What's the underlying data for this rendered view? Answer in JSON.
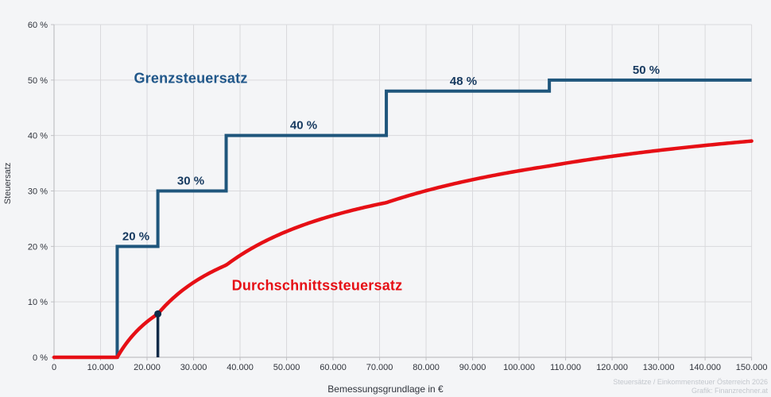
{
  "page": {
    "background": "#f4f5f7"
  },
  "chart_data": {
    "type": "line",
    "title": "",
    "xlabel": "Bemessungsgrundlage in €",
    "ylabel": "Steuersatz",
    "xlim": [
      0,
      150000
    ],
    "ylim": [
      0,
      60
    ],
    "grid": true,
    "x_tick_values": [
      0,
      10000,
      20000,
      30000,
      40000,
      50000,
      60000,
      70000,
      80000,
      90000,
      100000,
      110000,
      120000,
      130000,
      140000,
      150000
    ],
    "x_tick_labels": [
      "0",
      "10.000",
      "20.000",
      "30.000",
      "40.000",
      "50.000",
      "60.000",
      "70.000",
      "80.000",
      "90.000",
      "100.000",
      "110.000",
      "120.000",
      "130.000",
      "140.000",
      "150.000"
    ],
    "y_tick_values": [
      0,
      10,
      20,
      30,
      40,
      50,
      60
    ],
    "y_tick_labels": [
      "0 %",
      "10 %",
      "20 %",
      "30 %",
      "40 %",
      "50 %",
      "60 %"
    ],
    "series": [
      {
        "name": "Grenzsteuersatz",
        "type": "step",
        "color": "#1f567c",
        "label_color": "#20578a",
        "brackets": [
          {
            "from": 0,
            "to": 13583,
            "rate_pct": 0
          },
          {
            "from": 13583,
            "to": 22323,
            "rate_pct": 20
          },
          {
            "from": 22323,
            "to": 37012,
            "rate_pct": 30
          },
          {
            "from": 37012,
            "to": 71455,
            "rate_pct": 40
          },
          {
            "from": 71455,
            "to": 106505,
            "rate_pct": 48
          },
          {
            "from": 106505,
            "to": 150000,
            "rate_pct": 50
          }
        ],
        "step_labels": [
          "20 %",
          "30 %",
          "40 %",
          "48 %",
          "50 %"
        ],
        "step_label_color": "#16395f"
      },
      {
        "name": "Durchschnittssteuersatz",
        "type": "curve",
        "color": "#e60f15",
        "samples_x": [
          0,
          10000,
          13583,
          20000,
          30000,
          40000,
          50000,
          60000,
          70000,
          80000,
          90000,
          100000,
          110000,
          120000,
          130000,
          140000,
          150000
        ],
        "samples_y_pct": [
          0,
          0,
          0,
          6.4,
          13.5,
          18.4,
          22.7,
          25.6,
          27.6,
          30.0,
          32.0,
          33.6,
          35.0,
          36.3,
          37.3,
          38.2,
          39.0
        ]
      }
    ],
    "marker": {
      "x": 22323,
      "avg_rate_pct": 7.8,
      "color": "#0f2b49"
    },
    "legend_position": "inline-labels"
  },
  "labels": {
    "grenz": "Grenzsteuersatz",
    "durchschnitt": "Durchschnittssteuersatz",
    "xlabel": "Bemessungsgrundlage in €",
    "ylabel": "Steuersatz"
  },
  "credits": {
    "line1": "Steuersätze / Einkommensteuer Österreich 2026",
    "line2": "Grafik: Finanzrechner.at"
  },
  "colors": {
    "background": "#f4f5f7",
    "grid": "#d9d9dc",
    "axis": "#c0c0c4",
    "tick_text": "#30343c",
    "marginal_line": "#1f567c",
    "average_line": "#e60f15",
    "marker": "#0f2b49",
    "credit_text": "#c3c7cd"
  }
}
